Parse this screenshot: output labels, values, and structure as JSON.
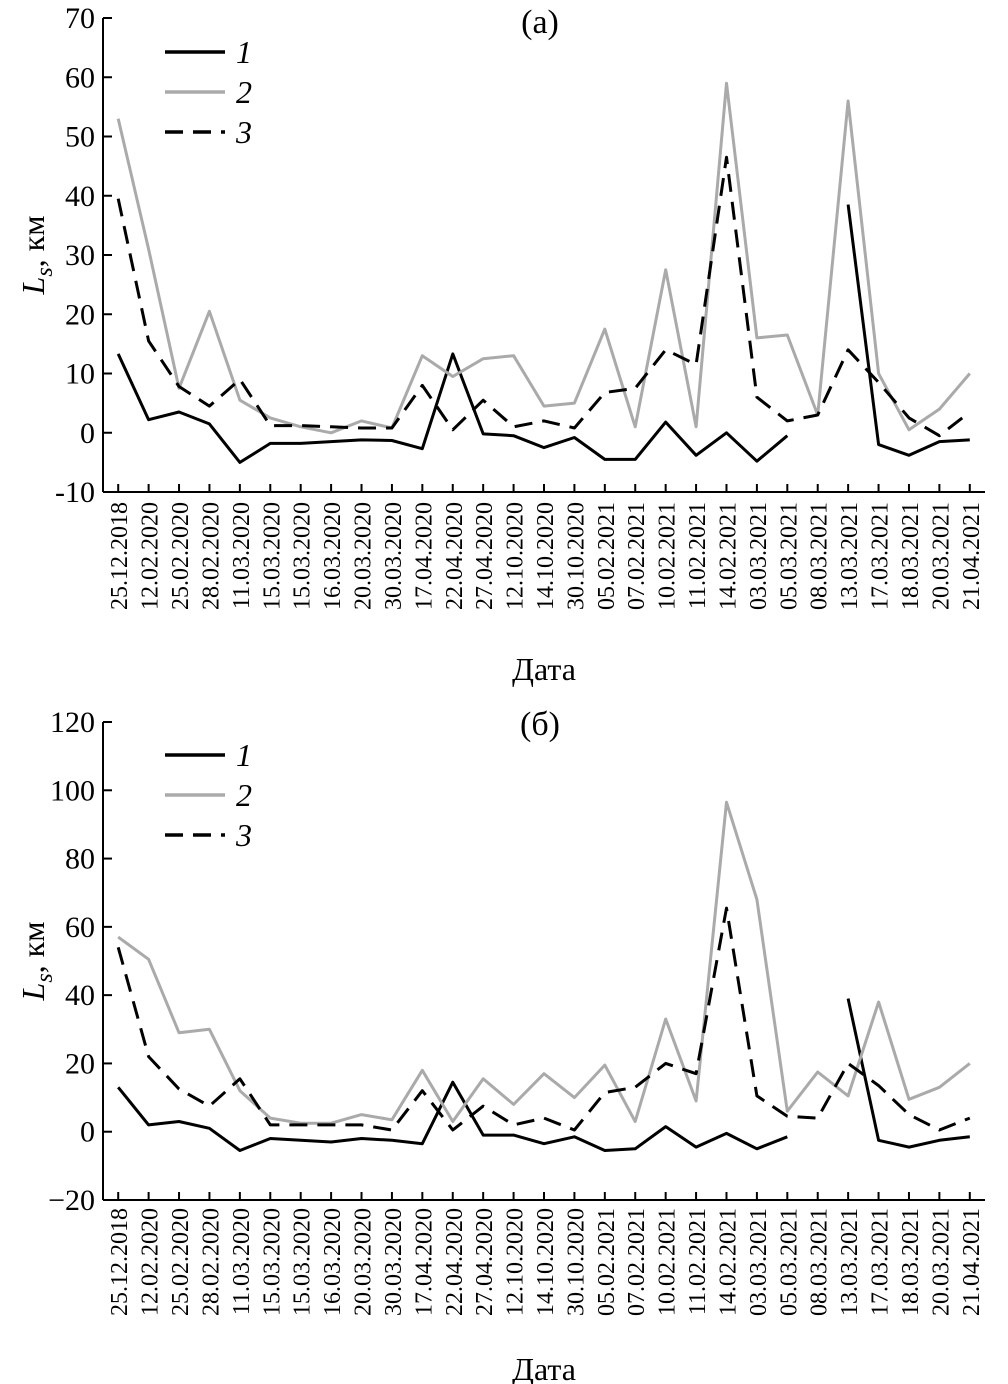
{
  "chart_data": [
    {
      "type": "line",
      "title": "(а)",
      "xlabel": "Дата",
      "ylabel_main": "L",
      "ylabel_sub": "s",
      "ylabel_unit": ", км",
      "ylim": [
        -10,
        70
      ],
      "yticks": [
        -10,
        0,
        10,
        20,
        30,
        40,
        50,
        60,
        70
      ],
      "grid": false,
      "legend_position": "top-left",
      "categories": [
        "25.12.2018",
        "12.02.2020",
        "25.02.2020",
        "28.02.2020",
        "11.03.2020",
        "15.03.2020",
        "15.03.2020",
        "16.03.2020",
        "20.03.2020",
        "30.03.2020",
        "17.04.2020",
        "22.04.2020",
        "27.04.2020",
        "12.10.2020",
        "14.10.2020",
        "30.10.2020",
        "05.02.2021",
        "07.02.2021",
        "10.02.2021",
        "11.02.2021",
        "14.02.2021",
        "03.03.2021",
        "05.03.2021",
        "08.03.2021",
        "13.03.2021",
        "17.03.2021",
        "18.03.2021",
        "20.03.2021",
        "21.04.2021"
      ],
      "series": [
        {
          "name": "1",
          "color": "#000000",
          "dash": "solid",
          "values": [
            13.3,
            2.2,
            3.5,
            1.5,
            -5.0,
            -1.8,
            -1.8,
            -1.5,
            -1.2,
            -1.3,
            -2.7,
            13.3,
            -0.2,
            -0.5,
            -2.5,
            -0.8,
            -4.5,
            -4.5,
            1.8,
            -3.8,
            0.0,
            -4.8,
            -0.5,
            null,
            38.5,
            -2.0,
            -3.8,
            -1.5,
            -1.2
          ]
        },
        {
          "name": "2",
          "color": "#aaaaaa",
          "dash": "solid",
          "values": [
            53.0,
            31.0,
            7.5,
            20.5,
            5.5,
            2.5,
            1.0,
            0.0,
            2.0,
            0.8,
            13.0,
            9.5,
            12.5,
            13.0,
            4.5,
            5.0,
            17.5,
            1.0,
            27.5,
            1.0,
            59.0,
            16.0,
            16.5,
            3.0,
            56.0,
            10.0,
            0.5,
            4.0,
            10.0
          ]
        },
        {
          "name": "3",
          "color": "#000000",
          "dash": "dashed",
          "values": [
            39.5,
            15.5,
            7.8,
            4.5,
            9.0,
            1.2,
            1.2,
            1.0,
            0.8,
            0.8,
            8.0,
            0.5,
            5.5,
            1.0,
            2.0,
            0.8,
            6.8,
            7.5,
            14.0,
            11.5,
            46.5,
            6.0,
            2.0,
            3.0,
            14.0,
            8.5,
            2.5,
            -0.5,
            3.5
          ]
        }
      ]
    },
    {
      "type": "line",
      "title": "(б)",
      "xlabel": "Дата",
      "ylabel_main": "L",
      "ylabel_sub": "s",
      "ylabel_unit": ", км",
      "ylim": [
        -20,
        120
      ],
      "yticks": [
        -20,
        0,
        20,
        40,
        60,
        80,
        100,
        120
      ],
      "ytick_labels": [
        "−20",
        "0",
        "20",
        "40",
        "60",
        "80",
        "100",
        "120"
      ],
      "grid": false,
      "legend_position": "top-left",
      "categories": [
        "25.12.2018",
        "12.02.2020",
        "25.02.2020",
        "28.02.2020",
        "11.03.2020",
        "15.03.2020",
        "15.03.2020",
        "16.03.2020",
        "20.03.2020",
        "30.03.2020",
        "17.04.2020",
        "22.04.2020",
        "27.04.2020",
        "12.10.2020",
        "14.10.2020",
        "30.10.2020",
        "05.02.2021",
        "07.02.2021",
        "10.02.2021",
        "11.02.2021",
        "14.02.2021",
        "03.03.2021",
        "05.03.2021",
        "08.03.2021",
        "13.03.2021",
        "17.03.2021",
        "18.03.2021",
        "20.03.2021",
        "21.04.2021"
      ],
      "series": [
        {
          "name": "1",
          "color": "#000000",
          "dash": "solid",
          "values": [
            13.0,
            2.0,
            3.0,
            1.0,
            -5.5,
            -2.0,
            -2.5,
            -3.0,
            -2.0,
            -2.5,
            -3.5,
            14.5,
            -1.0,
            -1.0,
            -3.5,
            -1.5,
            -5.5,
            -5.0,
            1.5,
            -4.5,
            -0.5,
            -5.0,
            -1.5,
            null,
            39.0,
            -2.5,
            -4.5,
            -2.5,
            -1.5
          ]
        },
        {
          "name": "2",
          "color": "#aaaaaa",
          "dash": "solid",
          "values": [
            57.0,
            50.5,
            29.0,
            30.0,
            12.0,
            4.0,
            2.5,
            2.5,
            5.0,
            3.5,
            18.0,
            3.0,
            15.5,
            8.0,
            17.0,
            10.0,
            19.5,
            3.0,
            33.0,
            9.0,
            96.5,
            68.0,
            6.0,
            17.5,
            10.5,
            38.0,
            9.5,
            13.0,
            20.0
          ]
        },
        {
          "name": "3",
          "color": "#000000",
          "dash": "dashed",
          "values": [
            54.0,
            22.0,
            12.5,
            7.5,
            15.5,
            2.0,
            2.0,
            2.0,
            2.0,
            0.5,
            12.0,
            0.5,
            7.5,
            2.0,
            4.0,
            0.5,
            11.5,
            13.0,
            20.0,
            17.0,
            65.5,
            10.5,
            4.5,
            4.0,
            20.0,
            13.5,
            5.0,
            0.5,
            4.0
          ]
        }
      ]
    }
  ]
}
